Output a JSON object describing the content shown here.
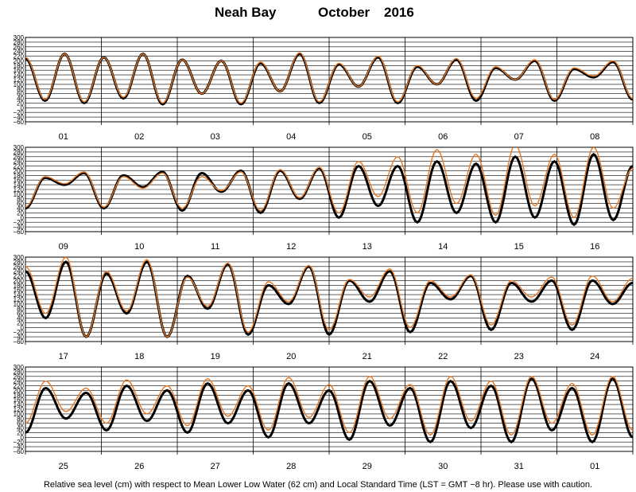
{
  "title": {
    "station": "Neah Bay",
    "month": "October",
    "year": "2016"
  },
  "caption": "Relative sea level (cm) with respect to Mean Lower Low Water (62 cm) and Local Standard Time (LST = GMT −8 hr). Please use with caution.",
  "colors": {
    "observed": "#000000",
    "predicted": "#e87722",
    "grid": "#000000"
  },
  "chart_data": {
    "type": "line",
    "ylabel": "",
    "yticks": [
      "300",
      "280",
      "260",
      "240",
      "220",
      "200",
      "180",
      "160",
      "140",
      "120",
      "100",
      "80",
      "60",
      "40",
      "20",
      "0",
      "−20",
      "−40",
      "−60"
    ],
    "ylim": [
      -60,
      300
    ],
    "ylim_panel_1": [
      -60,
      300
    ],
    "panels": [
      {
        "days": [
          "01",
          "02",
          "03",
          "04",
          "05",
          "06",
          "07",
          "08"
        ],
        "observed_extremes": [
          210,
          30,
          230,
          20,
          215,
          40,
          230,
          15,
          205,
          60,
          200,
          15,
          190,
          70,
          230,
          20,
          185,
          90,
          215,
          20,
          175,
          100,
          205,
          30,
          170,
          120,
          200,
          30,
          165,
          130,
          195,
          35
        ],
        "predicted_extremes": [
          215,
          35,
          230,
          25,
          215,
          45,
          230,
          20,
          205,
          60,
          200,
          20,
          195,
          70,
          235,
          25,
          190,
          90,
          220,
          25,
          180,
          100,
          210,
          40,
          175,
          120,
          205,
          35,
          170,
          135,
          200,
          40
        ]
      },
      {
        "days": [
          "09",
          "10",
          "11",
          "12",
          "13",
          "14",
          "15",
          "16"
        ],
        "observed_extremes": [
          40,
          170,
          140,
          190,
          40,
          180,
          130,
          195,
          30,
          190,
          110,
          200,
          20,
          200,
          80,
          210,
          0,
          220,
          50,
          220,
          -20,
          240,
          20,
          230,
          -20,
          260,
          0,
          240,
          -30,
          270,
          -10,
          220
        ],
        "predicted_extremes": [
          45,
          175,
          145,
          195,
          45,
          175,
          125,
          190,
          40,
          175,
          115,
          195,
          30,
          205,
          85,
          215,
          20,
          240,
          90,
          260,
          20,
          290,
          60,
          270,
          10,
          310,
          50,
          270,
          0,
          300,
          40,
          210
        ]
      },
      {
        "days": [
          "17",
          "18",
          "19",
          "20",
          "21",
          "22",
          "23",
          "24"
        ],
        "observed_extremes": [
          240,
          40,
          280,
          -40,
          230,
          60,
          280,
          -40,
          220,
          80,
          270,
          -30,
          180,
          100,
          260,
          -30,
          200,
          110,
          240,
          -20,
          190,
          120,
          220,
          -10,
          190,
          110,
          200,
          -10,
          200,
          100,
          190
        ],
        "predicted_extremes": [
          260,
          60,
          300,
          -40,
          240,
          70,
          290,
          -40,
          215,
          90,
          275,
          -20,
          195,
          110,
          265,
          -10,
          205,
          130,
          250,
          0,
          200,
          130,
          225,
          10,
          200,
          130,
          215,
          10,
          220,
          110,
          210
        ]
      },
      {
        "days": [
          "25",
          "26",
          "27",
          "28",
          "29",
          "30",
          "31",
          "01"
        ],
        "observed_extremes": [
          20,
          210,
          80,
          190,
          30,
          220,
          70,
          200,
          20,
          230,
          60,
          200,
          0,
          230,
          60,
          200,
          -10,
          240,
          50,
          210,
          -20,
          240,
          40,
          220,
          -20,
          250,
          30,
          210,
          -20,
          250,
          0
        ],
        "predicted_extremes": [
          60,
          240,
          110,
          210,
          60,
          245,
          100,
          220,
          50,
          250,
          90,
          220,
          30,
          255,
          85,
          225,
          20,
          260,
          80,
          225,
          10,
          260,
          70,
          240,
          10,
          260,
          60,
          230,
          10,
          260,
          30
        ]
      }
    ]
  }
}
